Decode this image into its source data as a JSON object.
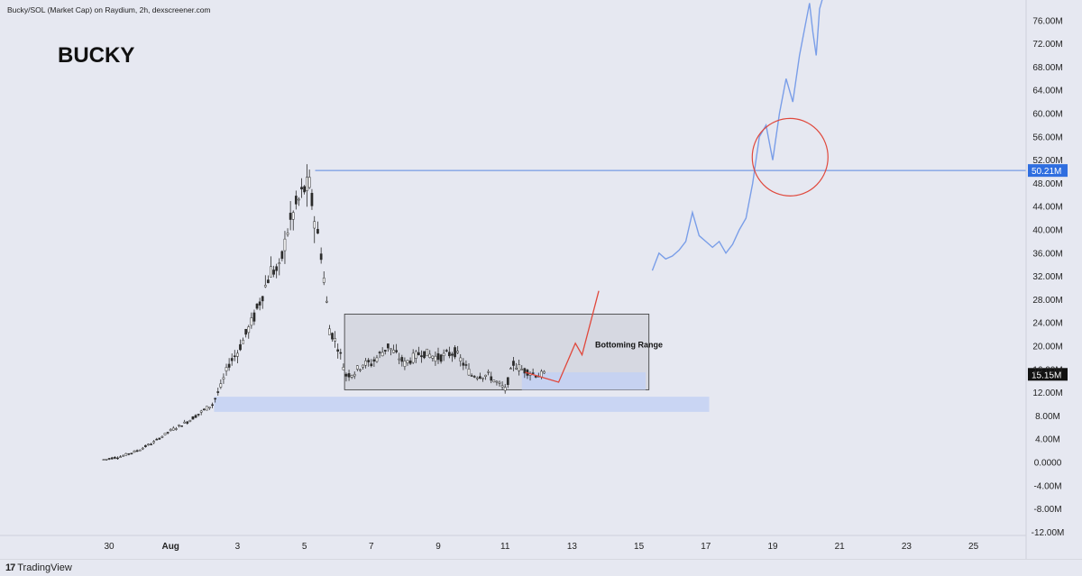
{
  "header": {
    "source": "Bucky/SOL (Market Cap) on Raydium, 2h, dexscreener.com",
    "ticker": "BUCKY"
  },
  "footer": {
    "brand": "TradingView",
    "logo_glyph": "17"
  },
  "colors": {
    "background": "#e6e8f1",
    "candle": "#2b2b2b",
    "resistance_line": "#5b87e0",
    "projection_line": "#7a9ee8",
    "highlight_circle": "#e0483c",
    "red_projection": "#e0483c",
    "range_box": "#c9cbd3",
    "support_zone": "#c3d1f3",
    "price_tag_bg": "#111111",
    "level_tag_bg": "#2f6ee0"
  },
  "chart_data": {
    "type": "line",
    "title": "",
    "xlabel": "",
    "ylabel": "",
    "y_unit": "M",
    "ylim": [
      -12,
      78
    ],
    "y_ticks": [
      "76.00M",
      "72.00M",
      "68.00M",
      "64.00M",
      "60.00M",
      "56.00M",
      "52.00M",
      "48.00M",
      "44.00M",
      "40.00M",
      "36.00M",
      "32.00M",
      "28.00M",
      "24.00M",
      "20.00M",
      "16.00M",
      "12.00M",
      "8.00M",
      "4.00M",
      "0.0000",
      "-4.00M",
      "-8.00M",
      "-12.00M"
    ],
    "x_ticks": [
      "30",
      "Aug",
      "3",
      "5",
      "7",
      "9",
      "11",
      "13",
      "15",
      "17",
      "19",
      "21",
      "23",
      "25"
    ],
    "grid": false,
    "series": [
      {
        "style": "candlestick-approx",
        "x": [
          0,
          0.5,
          1,
          1.5,
          2,
          2.5,
          3,
          3.25,
          3.5,
          3.75,
          4,
          4.25,
          4.5,
          4.75,
          5,
          5.25,
          5.5,
          5.75,
          6,
          6.15,
          6.3,
          6.5,
          6.75,
          7,
          7.25,
          7.5,
          7.75,
          8,
          8.5,
          9,
          9.5,
          10,
          10.5,
          11,
          11.5,
          12,
          12.25,
          12.5,
          12.75,
          13,
          13.25
        ],
        "values": [
          0.5,
          1,
          2,
          3.5,
          5.5,
          7,
          9,
          10,
          13,
          17,
          19,
          22,
          25,
          29,
          33,
          33,
          40,
          44,
          47,
          47.5,
          42,
          36,
          23,
          20,
          15,
          15.5,
          17,
          17,
          20,
          17,
          19,
          18,
          19,
          15,
          15,
          12.5,
          17,
          16,
          15.5,
          15,
          15.2
        ]
      },
      {
        "name": "",
        "style": "projection",
        "x": [
          16.4,
          16.6,
          16.8,
          17,
          17.2,
          17.4,
          17.6,
          17.8,
          18,
          18.2,
          18.4,
          18.6,
          18.8,
          19,
          19.2,
          19.4,
          19.6,
          19.8,
          20,
          20.2,
          20.4,
          20.6,
          20.8,
          21,
          21.1,
          21.2,
          21.3,
          21.4,
          21.6
        ],
        "values": [
          33,
          36,
          35,
          35.5,
          36.5,
          38,
          43,
          39,
          38,
          37,
          38,
          36,
          37.5,
          40,
          42,
          48,
          56,
          58,
          52,
          60,
          66,
          62,
          70,
          76,
          79,
          74,
          70,
          78,
          82
        ]
      }
    ],
    "levels": [
      {
        "y": 50.21,
        "label": "50.21M",
        "type": "horizontal-line"
      },
      {
        "y": 15.15,
        "label": "15.15M",
        "type": "last-price"
      }
    ],
    "zones": [
      {
        "label": "Bottoming Range",
        "x_from": 7.2,
        "x_to": 16.3,
        "y_from": 12.5,
        "y_to": 25.5
      },
      {
        "label": "",
        "x_from": 3.3,
        "x_to": 18.1,
        "y_from": 8.7,
        "y_to": 11.3
      },
      {
        "label": "",
        "x_from": 12.5,
        "x_to": 16.2,
        "y_from": 12.5,
        "y_to": 15.5
      }
    ],
    "annotations": [
      "Bottoming Range"
    ]
  }
}
